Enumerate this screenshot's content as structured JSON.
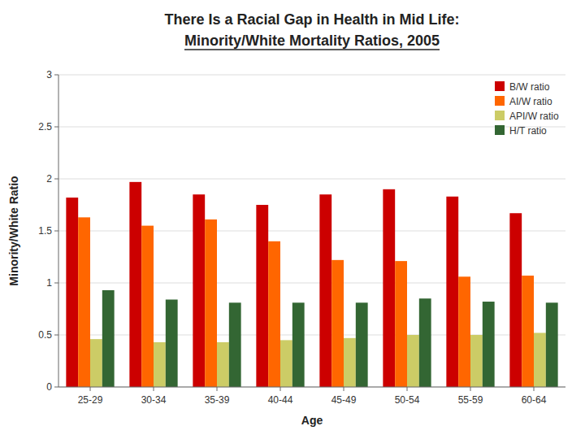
{
  "chart_data": {
    "type": "bar",
    "title": "There Is a Racial Gap in Health in Mid Life:",
    "subtitle": "Minority/White Mortality Ratios, 2005",
    "xlabel": "Age",
    "ylabel": "Minority/White Ratio",
    "categories": [
      "25-29",
      "30-34",
      "35-39",
      "40-44",
      "45-49",
      "50-54",
      "55-59",
      "60-64"
    ],
    "series": [
      {
        "name": "B/W ratio",
        "color": "#cc0000",
        "values": [
          1.82,
          1.97,
          1.85,
          1.75,
          1.85,
          1.9,
          1.83,
          1.67
        ]
      },
      {
        "name": "AI/W ratio",
        "color": "#ff6600",
        "values": [
          1.63,
          1.55,
          1.61,
          1.4,
          1.22,
          1.21,
          1.06,
          1.07
        ]
      },
      {
        "name": "API/W ratio",
        "color": "#cccc66",
        "values": [
          0.46,
          0.43,
          0.43,
          0.45,
          0.47,
          0.5,
          0.5,
          0.52
        ]
      },
      {
        "name": "H/T ratio",
        "color": "#336633",
        "values": [
          0.93,
          0.84,
          0.81,
          0.81,
          0.81,
          0.85,
          0.82,
          0.81
        ]
      }
    ],
    "ylim": [
      0,
      3
    ],
    "yticks": [
      0,
      0.5,
      1,
      1.5,
      2,
      2.5,
      3
    ],
    "grid": true,
    "legend": "upper right"
  }
}
